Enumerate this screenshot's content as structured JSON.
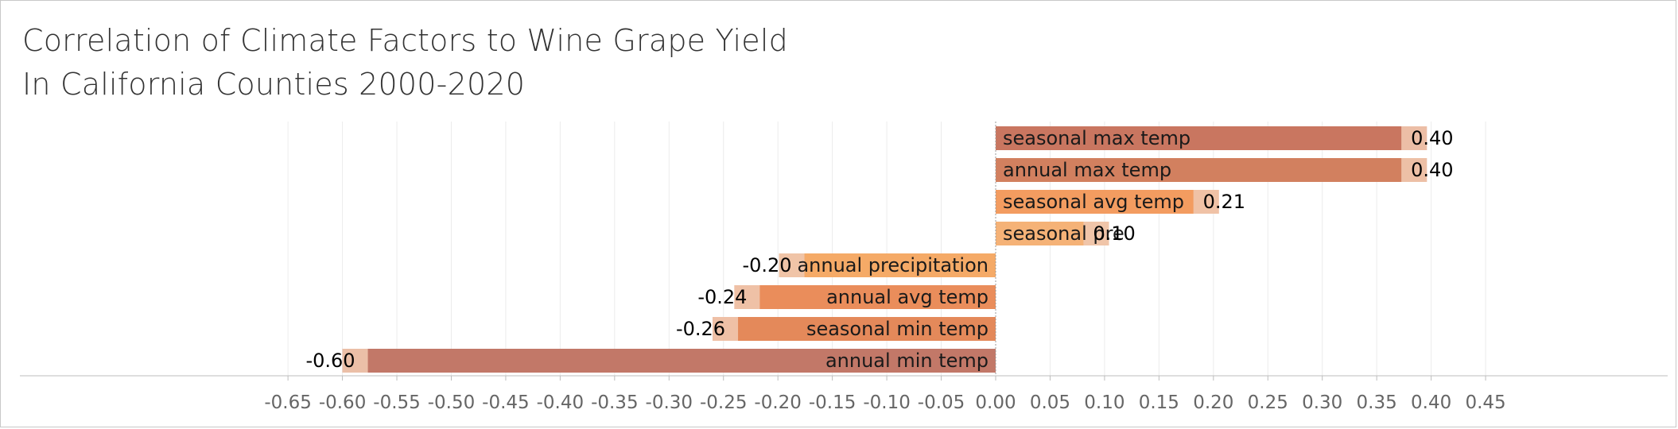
{
  "title_lines": [
    "Correlation of Climate Factors to Wine Grape Yield",
    "In California Counties 2000-2020"
  ],
  "chart_data": {
    "type": "bar",
    "orientation": "horizontal",
    "title": "Correlation of Climate Factors to Wine Grape Yield In California Counties 2000-2020",
    "xlabel": "",
    "ylabel": "",
    "xlim": [
      -0.67,
      0.46
    ],
    "xticks": [
      -0.65,
      -0.6,
      -0.55,
      -0.5,
      -0.45,
      -0.4,
      -0.35,
      -0.3,
      -0.25,
      -0.2,
      -0.15,
      -0.1,
      -0.05,
      0.0,
      0.05,
      0.1,
      0.15,
      0.2,
      0.25,
      0.3,
      0.35,
      0.4,
      0.45
    ],
    "xtick_labels": [
      "-0.65",
      "-0.60",
      "-0.55",
      "-0.50",
      "-0.45",
      "-0.40",
      "-0.35",
      "-0.30",
      "-0.25",
      "-0.20",
      "-0.15",
      "-0.10",
      "-0.05",
      "0.00",
      "0.05",
      "0.10",
      "0.15",
      "0.20",
      "0.25",
      "0.30",
      "0.35",
      "0.40",
      "0.45"
    ],
    "grid": true,
    "categories": [
      "seasonal max temp",
      "annual max temp",
      "seasonal avg temp",
      "seasonal precip",
      "annual precipitation",
      "annual avg temp",
      "seasonal min temp",
      "annual min temp"
    ],
    "category_labels": [
      "seasonal max temp",
      "annual max temp",
      "seasonal avg temp",
      "seasonal pre",
      "annual precipitation",
      "annual avg temp",
      "seasonal min temp",
      "annual min temp"
    ],
    "values": [
      0.396,
      0.396,
      0.205,
      0.104,
      -0.199,
      -0.24,
      -0.26,
      -0.6
    ],
    "value_labels": [
      "0.40",
      "0.40",
      "0.21",
      "0.10",
      "-0.20",
      "-0.24",
      "-0.26",
      "-0.60"
    ],
    "bar_colors": [
      "#c97660",
      "#d2805f",
      "#f39c60",
      "#f5b277",
      "#f5aa67",
      "#ea8d5b",
      "#e4895a",
      "#c27868"
    ],
    "band_color": "#f0c7ae",
    "gridline_color": "#ececec",
    "zero_line_color": "#9a9a9a"
  }
}
